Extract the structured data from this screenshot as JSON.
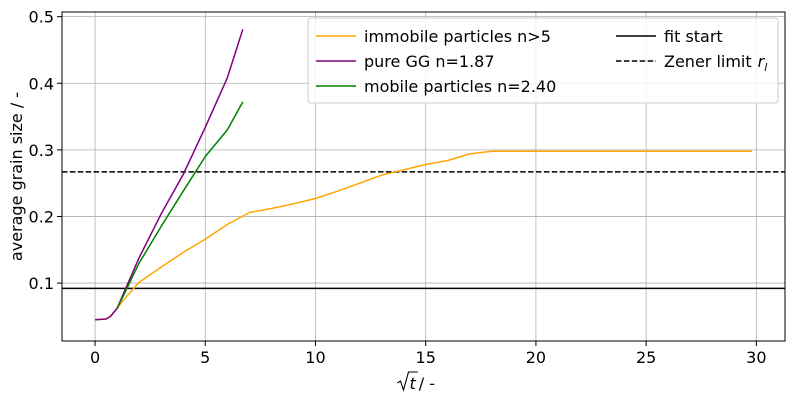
{
  "chart_data": {
    "type": "line",
    "xlabel_main": "t",
    "xlabel_suffix": " / -",
    "ylabel": "average grain size / -",
    "xlim": [
      -1.5,
      31.3
    ],
    "ylim": [
      0.013,
      0.507
    ],
    "xticks": [
      0,
      5,
      10,
      15,
      20,
      25,
      30
    ],
    "yticks": [
      0.1,
      0.2,
      0.3,
      0.4,
      0.5
    ],
    "grid": true,
    "legend": {
      "placement": "top-right",
      "columns": 2
    },
    "series": [
      {
        "name": "immobile particles n>5",
        "color": "#ffa500",
        "style": "solid",
        "x": [
          0,
          0.5,
          0.7,
          1.0,
          1.3,
          2.0,
          3.0,
          4.0,
          5.0,
          6.0,
          7.0,
          8.0,
          9.0,
          10.0,
          11.0,
          12.0,
          13.0,
          14.0,
          15.0,
          16.0,
          17.0,
          18.0,
          19.0,
          20.0,
          25.0,
          29.8
        ],
        "y": [
          0.045,
          0.046,
          0.05,
          0.062,
          0.075,
          0.101,
          0.124,
          0.146,
          0.166,
          0.188,
          0.206,
          0.212,
          0.219,
          0.227,
          0.238,
          0.25,
          0.262,
          0.27,
          0.278,
          0.284,
          0.294,
          0.298,
          0.298,
          0.298,
          0.298,
          0.298
        ]
      },
      {
        "name": "pure GG n=1.87",
        "color": "#800080",
        "style": "solid",
        "x": [
          0,
          0.5,
          0.7,
          1.0,
          1.3,
          2.0,
          3.0,
          4.0,
          5.0,
          6.0,
          6.7
        ],
        "y": [
          0.045,
          0.046,
          0.05,
          0.062,
          0.085,
          0.138,
          0.204,
          0.263,
          0.334,
          0.408,
          0.481
        ]
      },
      {
        "name": "mobile particles n=2.40",
        "color": "#008000",
        "style": "solid",
        "x": [
          1.0,
          1.3,
          2.0,
          3.0,
          4.0,
          5.0,
          6.0,
          6.7
        ],
        "y": [
          0.062,
          0.082,
          0.13,
          0.185,
          0.238,
          0.29,
          0.33,
          0.372
        ]
      }
    ],
    "reference_lines": [
      {
        "name": "fit start",
        "y": 0.092,
        "color": "#000000",
        "style": "solid"
      },
      {
        "name": "Zener limit",
        "name_symbol": "r",
        "name_subscript": "l",
        "y": 0.267,
        "color": "#000000",
        "style": "dashed"
      }
    ]
  }
}
